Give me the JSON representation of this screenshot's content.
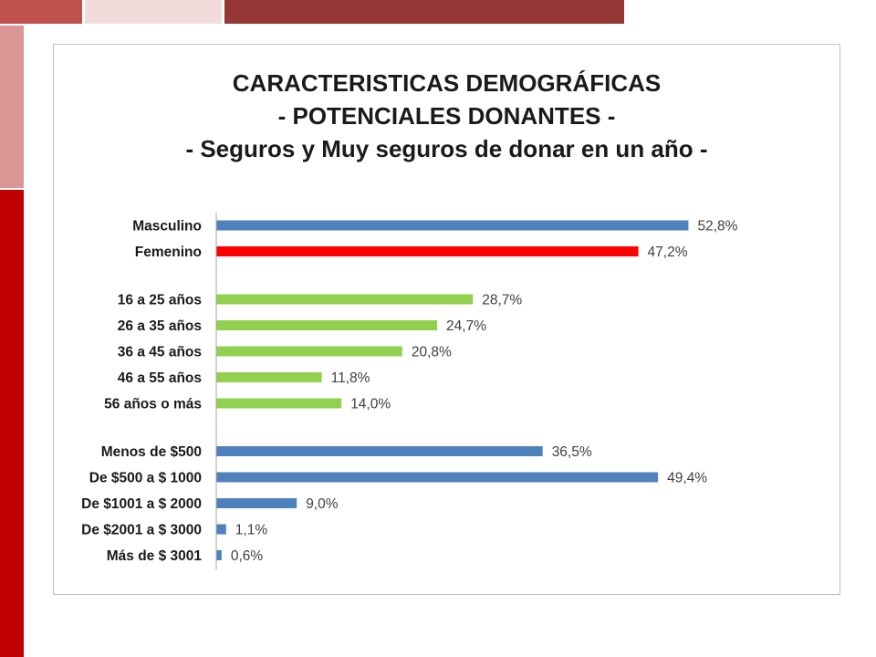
{
  "slide": {
    "colors": {
      "decor_red": "#c0504d",
      "decor_pink": "#f2dcdb",
      "decor_dark_red": "#953735",
      "decor_side_pink": "#d99694",
      "decor_side_red": "#c00000"
    }
  },
  "chart_data": {
    "type": "bar",
    "orientation": "horizontal",
    "title_lines": [
      "CARACTERISTICAS DEMOGRÁFICAS",
      "- POTENCIALES DONANTES -",
      "- Seguros y Muy seguros de donar en un año -"
    ],
    "xlabel": "",
    "ylabel": "",
    "xlim": [
      0,
      60
    ],
    "grid": false,
    "legend": "none",
    "groups": [
      {
        "items": [
          {
            "label": "Masculino",
            "value": 52.8,
            "value_label": "52,8%",
            "color": "#4f81bd"
          },
          {
            "label": "Femenino",
            "value": 47.2,
            "value_label": "47,2%",
            "color": "#ff0000"
          }
        ]
      },
      {
        "items": [
          {
            "label": "16 a 25 años",
            "value": 28.7,
            "value_label": "28,7%",
            "color": "#92d050"
          },
          {
            "label": "26 a 35 años",
            "value": 24.7,
            "value_label": "24,7%",
            "color": "#92d050"
          },
          {
            "label": "36 a 45 años",
            "value": 20.8,
            "value_label": "20,8%",
            "color": "#92d050"
          },
          {
            "label": "46 a 55 años",
            "value": 11.8,
            "value_label": "11,8%",
            "color": "#92d050"
          },
          {
            "label": "56 años o más",
            "value": 14.0,
            "value_label": "14,0%",
            "color": "#92d050"
          }
        ]
      },
      {
        "items": [
          {
            "label": "Menos de $500",
            "value": 36.5,
            "value_label": "36,5%",
            "color": "#4f81bd"
          },
          {
            "label": "De $500 a $ 1000",
            "value": 49.4,
            "value_label": "49,4%",
            "color": "#4f81bd"
          },
          {
            "label": "De $1001 a $ 2000",
            "value": 9.0,
            "value_label": "9,0%",
            "color": "#4f81bd"
          },
          {
            "label": "De $2001 a $ 3000",
            "value": 1.1,
            "value_label": "1,1%",
            "color": "#4f81bd"
          },
          {
            "label": "Más de $ 3001",
            "value": 0.6,
            "value_label": "0,6%",
            "color": "#4f81bd"
          }
        ]
      }
    ]
  }
}
